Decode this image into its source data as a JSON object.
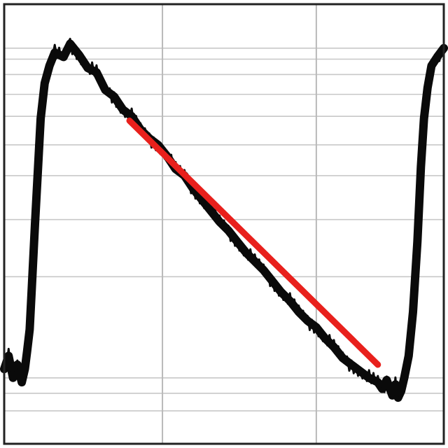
{
  "chart_data": {
    "type": "line",
    "title": "",
    "xlabel": "",
    "ylabel": "",
    "xlim": [
      0,
      100
    ],
    "ylim": [
      0,
      100
    ],
    "grid": {
      "vertical": true,
      "horizontal": true
    },
    "colors": {
      "trace": "#0a0a0a",
      "fit": "#e8201c",
      "grid_major": "#b9b9b9",
      "grid_minor": "#c8c8c8",
      "frame": "#222222"
    },
    "x_grid_values": [
      36,
      71
    ],
    "y_grid_values": [
      90,
      87.5,
      84,
      79.5,
      74.5,
      68,
      61,
      51,
      38,
      15,
      11.5,
      7.5
    ],
    "series": [
      {
        "role": "trace",
        "x": [
          0,
          1,
          2,
          3,
          4,
          4.7,
          5.2,
          5.8,
          6.3,
          7,
          7.7,
          8.3,
          9.2,
          10.3,
          11.5,
          13.5,
          15,
          17,
          19,
          21,
          23,
          25,
          27,
          29,
          31,
          33,
          35,
          37,
          39,
          41,
          43,
          45,
          47,
          49,
          51,
          53,
          55,
          57,
          59,
          61,
          63,
          65,
          67,
          69,
          71,
          73,
          75,
          77,
          79,
          81,
          83,
          85,
          86,
          87,
          88.3,
          89,
          89.6,
          90.3,
          91,
          92,
          93,
          94,
          94.8,
          95.5,
          96.3,
          97.2,
          98.5,
          100
        ],
        "y": [
          17,
          20,
          15,
          18,
          14,
          17,
          21,
          26,
          36,
          50,
          63,
          74,
          82,
          86,
          89,
          88,
          91,
          88.5,
          85.5,
          84.5,
          80.5,
          79,
          76,
          74.5,
          71.5,
          69.5,
          68,
          65.5,
          62.5,
          61,
          58,
          55.5,
          53,
          50.5,
          48.5,
          46,
          43.5,
          41.5,
          39.5,
          37,
          34.5,
          32.5,
          30,
          28,
          26.5,
          24,
          22,
          19.5,
          18,
          16.5,
          15,
          14,
          12.5,
          14.5,
          11,
          13.5,
          10.5,
          12,
          15,
          20,
          30,
          46,
          63,
          74,
          81,
          86,
          88,
          90
        ]
      },
      {
        "role": "fit",
        "x": [
          28.5,
          85
        ],
        "y": [
          73.5,
          18
        ]
      }
    ]
  }
}
